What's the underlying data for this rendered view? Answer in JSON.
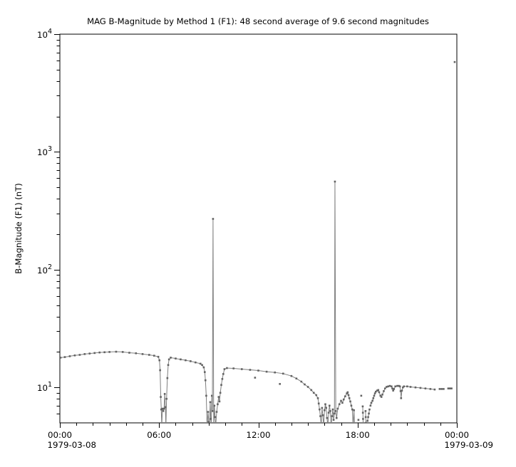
{
  "title": "MAG  B-Magnitude by Method 1 (F1): 48 second average of 9.6 second magnitudes",
  "colors": {
    "background": "#ffffff",
    "axis": "#000000",
    "text": "#000000",
    "marker": "#636363",
    "line": "#7f7f7f"
  },
  "axes": {
    "ylabel": "B-Magnitude (F1) (nT)",
    "y_scale": "log",
    "y_min": 5,
    "y_max": 10000,
    "y_major_ticks": [
      {
        "value": 10,
        "base": "10",
        "exp": "1"
      },
      {
        "value": 100,
        "base": "10",
        "exp": "2"
      },
      {
        "value": 1000,
        "base": "10",
        "exp": "3"
      },
      {
        "value": 10000,
        "base": "10",
        "exp": "4"
      }
    ],
    "x_min_hours": 0,
    "x_max_hours": 24,
    "x_minor_step_hours": 1,
    "x_major_ticks": [
      {
        "hours": 0,
        "label": "00:00",
        "date": "1979-03-08"
      },
      {
        "hours": 6,
        "label": "06:00"
      },
      {
        "hours": 12,
        "label": "12:00"
      },
      {
        "hours": 18,
        "label": "18:00"
      },
      {
        "hours": 24,
        "label": "00:00",
        "date": "1979-03-09"
      }
    ]
  },
  "chart_data": {
    "type": "line",
    "title": "MAG  B-Magnitude by Method 1 (F1): 48 second average of 9.6 second magnitudes",
    "xlabel": "",
    "ylabel": "B-Magnitude (F1) (nT)",
    "x_unit": "hours since 1979-03-08 00:00",
    "y_unit": "nT",
    "y_scale": "log",
    "xlim": [
      0,
      24
    ],
    "ylim": [
      5,
      10000
    ],
    "legend": "none",
    "grid": false,
    "marker": "square",
    "segments": [
      [
        [
          0.04,
          17.9
        ],
        [
          0.3,
          18.1
        ],
        [
          0.6,
          18.4
        ],
        [
          0.9,
          18.7
        ],
        [
          1.2,
          18.9
        ],
        [
          1.5,
          19.2
        ],
        [
          1.8,
          19.4
        ],
        [
          2.1,
          19.6
        ],
        [
          2.4,
          19.8
        ],
        [
          2.7,
          19.9
        ],
        [
          3.0,
          20.0
        ],
        [
          3.4,
          20.1
        ],
        [
          3.8,
          20.0
        ],
        [
          4.2,
          19.7
        ],
        [
          4.6,
          19.5
        ],
        [
          5.0,
          19.2
        ],
        [
          5.4,
          18.9
        ],
        [
          5.7,
          18.6
        ],
        [
          5.95,
          18.2
        ],
        [
          6.02,
          17.0
        ],
        [
          6.06,
          14.0
        ],
        [
          6.1,
          8.3
        ],
        [
          6.13,
          6.5
        ],
        [
          6.16,
          4.7
        ],
        [
          6.2,
          6.6
        ],
        [
          6.25,
          6.3
        ],
        [
          6.3,
          6.6
        ],
        [
          6.34,
          8.8
        ],
        [
          6.38,
          6.8
        ],
        [
          6.41,
          4.7
        ],
        [
          6.45,
          8.0
        ],
        [
          6.5,
          12.0
        ],
        [
          6.55,
          15.5
        ],
        [
          6.6,
          17.3
        ],
        [
          6.7,
          17.9
        ],
        [
          7.0,
          17.6
        ],
        [
          7.3,
          17.3
        ],
        [
          7.6,
          17.0
        ],
        [
          7.9,
          16.7
        ],
        [
          8.2,
          16.3
        ],
        [
          8.5,
          15.9
        ],
        [
          8.6,
          15.5
        ],
        [
          8.7,
          14.8
        ],
        [
          8.76,
          13.5
        ],
        [
          8.8,
          11.5
        ],
        [
          8.85,
          8.5
        ],
        [
          8.9,
          4.7
        ],
        [
          8.96,
          6.2
        ],
        [
          9.0,
          5.1
        ],
        [
          9.04,
          4.7
        ],
        [
          9.09,
          7.5
        ],
        [
          9.12,
          5.4
        ],
        [
          9.15,
          4.7
        ],
        [
          9.19,
          8.5
        ],
        [
          9.22,
          6.3
        ],
        [
          9.26,
          270
        ],
        [
          9.3,
          4.7
        ],
        [
          9.34,
          7.0
        ],
        [
          9.38,
          5.6
        ],
        [
          9.42,
          4.7
        ],
        [
          9.48,
          6.2
        ],
        [
          9.54,
          7.2
        ],
        [
          9.6,
          8.3
        ],
        [
          9.65,
          7.6
        ],
        [
          9.7,
          9.0
        ],
        [
          9.76,
          10.5
        ],
        [
          9.82,
          11.8
        ],
        [
          9.88,
          13.0
        ],
        [
          9.95,
          14.3
        ],
        [
          10.1,
          14.6
        ],
        [
          10.5,
          14.5
        ],
        [
          11.0,
          14.3
        ],
        [
          11.5,
          14.1
        ],
        [
          12.0,
          13.9
        ],
        [
          12.5,
          13.6
        ],
        [
          13.0,
          13.4
        ],
        [
          13.5,
          13.1
        ],
        [
          14.0,
          12.5
        ],
        [
          14.3,
          11.9
        ],
        [
          14.6,
          11.2
        ],
        [
          14.8,
          10.6
        ],
        [
          15.0,
          10.1
        ],
        [
          15.2,
          9.5
        ],
        [
          15.35,
          9.0
        ],
        [
          15.5,
          8.6
        ],
        [
          15.6,
          8.1
        ],
        [
          15.65,
          7.3
        ],
        [
          15.7,
          6.5
        ],
        [
          15.75,
          5.7
        ],
        [
          15.8,
          4.7
        ],
        [
          15.85,
          6.7
        ],
        [
          15.9,
          5.8
        ],
        [
          15.95,
          4.7
        ],
        [
          16.0,
          6.4
        ],
        [
          16.05,
          7.2
        ],
        [
          16.1,
          6.7
        ],
        [
          16.15,
          5.5
        ],
        [
          16.2,
          4.7
        ],
        [
          16.25,
          6.1
        ],
        [
          16.3,
          7.0
        ],
        [
          16.35,
          6.3
        ],
        [
          16.4,
          4.7
        ],
        [
          16.45,
          5.7
        ],
        [
          16.5,
          6.5
        ],
        [
          16.55,
          5.3
        ],
        [
          16.6,
          6.0
        ],
        [
          16.63,
          560
        ],
        [
          16.68,
          6.3
        ],
        [
          16.73,
          5.5
        ],
        [
          16.8,
          6.6
        ],
        [
          16.9,
          7.2
        ],
        [
          17.0,
          7.7
        ],
        [
          17.08,
          7.4
        ],
        [
          17.16,
          7.9
        ],
        [
          17.25,
          8.4
        ],
        [
          17.35,
          8.9
        ],
        [
          17.4,
          9.1
        ],
        [
          17.45,
          8.6
        ],
        [
          17.5,
          8.1
        ],
        [
          17.56,
          7.6
        ],
        [
          17.62,
          7.0
        ],
        [
          17.68,
          6.5
        ],
        [
          17.73,
          4.7
        ],
        [
          17.78,
          6.4
        ],
        [
          17.82,
          4.7
        ]
      ],
      [
        [
          11.8,
          12.1
        ]
      ],
      [
        [
          13.3,
          10.7
        ]
      ],
      [
        [
          18.05,
          5.3
        ]
      ],
      [
        [
          18.22,
          8.5
        ]
      ],
      [
        [
          18.31,
          6.9
        ],
        [
          18.32,
          6.1
        ],
        [
          18.33,
          5.4
        ],
        [
          18.34,
          4.7
        ]
      ],
      [
        [
          18.48,
          6.3
        ],
        [
          18.49,
          5.6
        ],
        [
          18.5,
          5.0
        ],
        [
          18.51,
          4.6
        ]
      ],
      [
        [
          18.6,
          5.2
        ],
        [
          18.64,
          5.6
        ],
        [
          18.68,
          6.0
        ],
        [
          18.72,
          6.5
        ]
      ],
      [
        [
          18.78,
          7.0
        ],
        [
          18.83,
          7.4
        ],
        [
          18.9,
          7.7
        ],
        [
          18.95,
          8.1
        ],
        [
          19.0,
          8.5
        ],
        [
          19.05,
          8.9
        ],
        [
          19.1,
          9.2
        ],
        [
          19.18,
          9.4
        ],
        [
          19.25,
          9.5
        ],
        [
          19.3,
          9.1
        ],
        [
          19.38,
          8.5
        ],
        [
          19.44,
          8.3
        ],
        [
          19.5,
          8.7
        ],
        [
          19.58,
          9.3
        ],
        [
          19.66,
          9.8
        ],
        [
          19.75,
          10.1
        ],
        [
          19.85,
          10.2
        ],
        [
          19.95,
          10.3
        ],
        [
          20.05,
          10.2
        ],
        [
          20.1,
          9.8
        ],
        [
          20.15,
          9.4
        ],
        [
          20.2,
          9.7
        ],
        [
          20.28,
          10.2
        ],
        [
          20.4,
          10.3
        ],
        [
          20.5,
          10.3
        ],
        [
          20.56,
          10.2
        ],
        [
          20.6,
          9.3
        ],
        [
          20.63,
          8.1
        ],
        [
          20.68,
          9.4
        ],
        [
          20.74,
          10.0
        ],
        [
          20.8,
          10.2
        ],
        [
          21.0,
          10.2
        ],
        [
          21.2,
          10.1
        ],
        [
          21.5,
          10.0
        ],
        [
          21.8,
          9.9
        ],
        [
          22.1,
          9.8
        ],
        [
          22.4,
          9.7
        ],
        [
          22.66,
          9.6
        ]
      ],
      [
        [
          22.96,
          9.7
        ],
        [
          23.08,
          9.7
        ],
        [
          23.2,
          9.7
        ]
      ],
      [
        [
          23.48,
          9.8
        ],
        [
          23.58,
          9.8
        ],
        [
          23.68,
          9.8
        ]
      ],
      [
        [
          23.87,
          5800
        ]
      ]
    ]
  }
}
